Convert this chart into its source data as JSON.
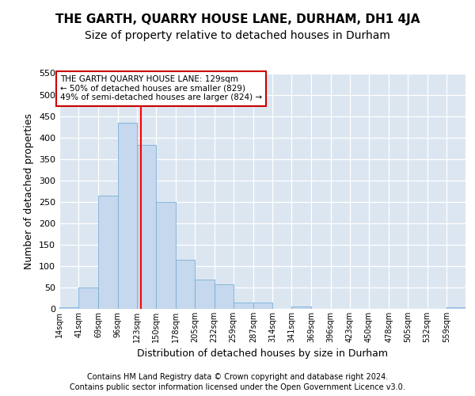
{
  "title1": "THE GARTH, QUARRY HOUSE LANE, DURHAM, DH1 4JA",
  "title2": "Size of property relative to detached houses in Durham",
  "xlabel": "Distribution of detached houses by size in Durham",
  "ylabel": "Number of detached properties",
  "footer1": "Contains HM Land Registry data © Crown copyright and database right 2024.",
  "footer2": "Contains public sector information licensed under the Open Government Licence v3.0.",
  "bin_labels": [
    "14sqm",
    "41sqm",
    "69sqm",
    "96sqm",
    "123sqm",
    "150sqm",
    "178sqm",
    "205sqm",
    "232sqm",
    "259sqm",
    "287sqm",
    "314sqm",
    "341sqm",
    "369sqm",
    "396sqm",
    "423sqm",
    "450sqm",
    "478sqm",
    "505sqm",
    "532sqm",
    "559sqm"
  ],
  "bin_edges": [
    14,
    41,
    69,
    96,
    123,
    150,
    178,
    205,
    232,
    259,
    287,
    314,
    341,
    369,
    396,
    423,
    450,
    478,
    505,
    532,
    559,
    586
  ],
  "bar_heights": [
    3,
    50,
    265,
    435,
    383,
    249,
    114,
    68,
    58,
    15,
    15,
    0,
    6,
    0,
    0,
    0,
    0,
    0,
    0,
    0,
    3
  ],
  "bar_color": "#c5d8ed",
  "bar_edgecolor": "#7aadd4",
  "bg_color": "#dce6f1",
  "grid_color": "#ffffff",
  "red_line_x": 129,
  "annotation_line1": "THE GARTH QUARRY HOUSE LANE: 129sqm",
  "annotation_line2": "← 50% of detached houses are smaller (829)",
  "annotation_line3": "49% of semi-detached houses are larger (824) →",
  "annotation_box_facecolor": "#ffffff",
  "annotation_box_edgecolor": "#cc0000",
  "fig_bg_color": "#ffffff",
  "ylim_max": 550,
  "yticks": [
    0,
    50,
    100,
    150,
    200,
    250,
    300,
    350,
    400,
    450,
    500,
    550
  ],
  "title1_fontsize": 11,
  "title2_fontsize": 10,
  "ylabel_fontsize": 9,
  "xlabel_fontsize": 9,
  "tick_fontsize": 8,
  "footer_fontsize": 7
}
